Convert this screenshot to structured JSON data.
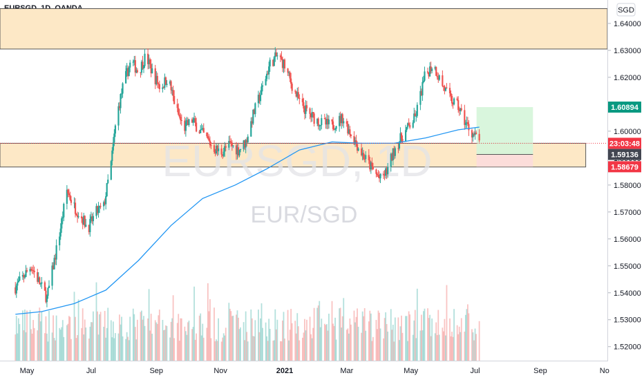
{
  "header": {
    "symbol_title": "EURSGD, 1D, OANDA"
  },
  "currency_badge": "SGD",
  "watermark": {
    "big": "EURSGD, 1D",
    "small": "EUR/SGD"
  },
  "price_tags": [
    {
      "label": "1.60894",
      "value": 1.60894,
      "color": "#089981",
      "name": "take-profit-price-tag"
    },
    {
      "label": "23:03:48",
      "value": 1.5955,
      "color": "#f23645",
      "name": "countdown-price-tag"
    },
    {
      "label": "1.59136",
      "value": 1.59136,
      "color": "#434651",
      "name": "entry-price-tag"
    },
    {
      "label": "1.58679",
      "value": 1.58679,
      "color": "#f23645",
      "name": "stop-loss-price-tag"
    }
  ],
  "colors": {
    "up": "#26a69a",
    "down": "#ef5350",
    "ma": "#2196f3",
    "zone_fill": "#fde8c6",
    "zone_line": "#555555",
    "profit_fill": "#d5f5d9",
    "loss_fill": "#fcdcdc"
  },
  "chart_data": {
    "type": "candlestick",
    "timeframe": "1D",
    "x_labels": [
      "May",
      "Jul",
      "Sep",
      "Nov",
      "2021",
      "Mar",
      "May",
      "Jul",
      "Sep",
      "No"
    ],
    "x_label_dates": [
      "2020-05-01",
      "2020-07-01",
      "2020-09-01",
      "2020-11-01",
      "2021-01-01",
      "2021-03-01",
      "2021-05-01",
      "2021-07-01",
      "2021-09-01",
      "2021-11-01"
    ],
    "y_ticks": [
      "1.64000",
      "1.63000",
      "1.62000",
      "1.61000",
      "1.60000",
      "1.59000",
      "1.58000",
      "1.57000",
      "1.56000",
      "1.55000",
      "1.54000",
      "1.53000",
      "1.52000"
    ],
    "ylim": [
      1.5148,
      1.6487
    ],
    "close_path": [
      [
        "2020-04-20",
        1.542
      ],
      [
        "2020-05-05",
        1.55
      ],
      [
        "2020-05-20",
        1.538
      ],
      [
        "2020-06-01",
        1.562
      ],
      [
        "2020-06-08",
        1.578
      ],
      [
        "2020-06-15",
        1.572
      ],
      [
        "2020-06-22",
        1.568
      ],
      [
        "2020-06-28",
        1.564
      ],
      [
        "2020-07-06",
        1.57
      ],
      [
        "2020-07-13",
        1.572
      ],
      [
        "2020-07-20",
        1.588
      ],
      [
        "2020-07-25",
        1.605
      ],
      [
        "2020-08-01",
        1.618
      ],
      [
        "2020-08-08",
        1.626
      ],
      [
        "2020-08-15",
        1.622
      ],
      [
        "2020-08-22",
        1.628
      ],
      [
        "2020-08-29",
        1.621
      ],
      [
        "2020-09-05",
        1.616
      ],
      [
        "2020-09-12",
        1.62
      ],
      [
        "2020-09-20",
        1.608
      ],
      [
        "2020-09-27",
        1.601
      ],
      [
        "2020-10-05",
        1.604
      ],
      [
        "2020-10-15",
        1.599
      ],
      [
        "2020-10-25",
        1.594
      ],
      [
        "2020-11-01",
        1.592
      ],
      [
        "2020-11-10",
        1.595
      ],
      [
        "2020-11-18",
        1.593
      ],
      [
        "2020-11-25",
        1.596
      ],
      [
        "2020-12-02",
        1.606
      ],
      [
        "2020-12-10",
        1.615
      ],
      [
        "2020-12-18",
        1.625
      ],
      [
        "2020-12-25",
        1.628
      ],
      [
        "2020-12-31",
        1.625
      ],
      [
        "2021-01-08",
        1.617
      ],
      [
        "2021-01-16",
        1.61
      ],
      [
        "2021-01-25",
        1.606
      ],
      [
        "2021-02-05",
        1.603
      ],
      [
        "2021-02-15",
        1.602
      ],
      [
        "2021-02-25",
        1.605
      ],
      [
        "2021-03-05",
        1.599
      ],
      [
        "2021-03-15",
        1.592
      ],
      [
        "2021-03-25",
        1.586
      ],
      [
        "2021-04-02",
        1.582
      ],
      [
        "2021-04-08",
        1.585
      ],
      [
        "2021-04-16",
        1.594
      ],
      [
        "2021-04-26",
        1.6
      ],
      [
        "2021-05-05",
        1.605
      ],
      [
        "2021-05-14",
        1.62
      ],
      [
        "2021-05-22",
        1.625
      ],
      [
        "2021-05-30",
        1.618
      ],
      [
        "2021-06-07",
        1.612
      ],
      [
        "2021-06-15",
        1.609
      ],
      [
        "2021-06-22",
        1.603
      ],
      [
        "2021-06-27",
        1.6
      ],
      [
        "2021-07-01",
        1.598
      ],
      [
        "2021-07-05",
        1.596
      ]
    ],
    "moving_average": [
      [
        "2020-04-20",
        1.532
      ],
      [
        "2020-05-15",
        1.533
      ],
      [
        "2020-06-15",
        1.536
      ],
      [
        "2020-07-15",
        1.541
      ],
      [
        "2020-08-15",
        1.552
      ],
      [
        "2020-09-15",
        1.565
      ],
      [
        "2020-10-15",
        1.575
      ],
      [
        "2020-11-15",
        1.58
      ],
      [
        "2020-12-15",
        1.586
      ],
      [
        "2021-01-15",
        1.593
      ],
      [
        "2021-02-15",
        1.596
      ],
      [
        "2021-03-15",
        1.5955
      ],
      [
        "2021-04-15",
        1.5955
      ],
      [
        "2021-05-15",
        1.5975
      ],
      [
        "2021-06-15",
        1.6005
      ],
      [
        "2021-07-05",
        1.6015
      ]
    ],
    "resistance_zone": [
      1.6305,
      1.6455
    ],
    "support_zone": [
      1.5867,
      1.5955
    ],
    "position": {
      "type": "long",
      "start": "2021-07-05",
      "end": "2021-08-25",
      "entry": 1.59136,
      "take_profit": 1.60894,
      "stop_loss": 1.58679
    },
    "volume_ylim": [
      0,
      1.0
    ],
    "grid": false,
    "legend": "none"
  }
}
